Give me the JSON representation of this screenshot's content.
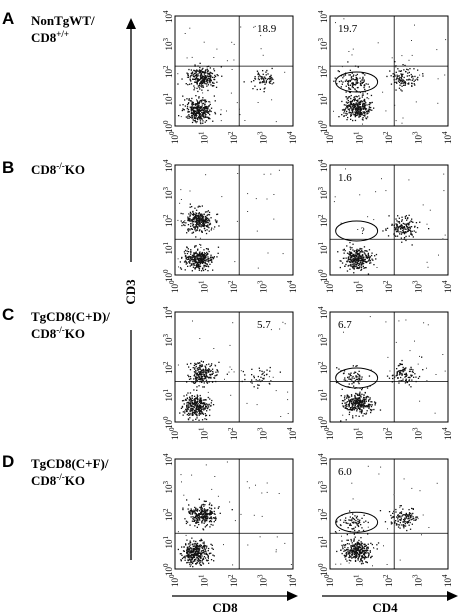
{
  "chart_data": {
    "type": "scatter",
    "xlabel_left": "CD8",
    "xlabel_right": "CD4",
    "ylabel": "CD3",
    "axis_scale": "log",
    "xlim": [
      1,
      10000
    ],
    "ylim": [
      1,
      10000
    ],
    "tick_labels": [
      "10^0",
      "10^1",
      "10^2",
      "10^3",
      "10^4"
    ],
    "panels": [
      {
        "letter": "A",
        "label_lines": [
          "NonTgWT/",
          "CD8+/+"
        ],
        "left_value": "18.9",
        "right_value": "19.7",
        "left_gate": [
          150,
          150
        ],
        "right_gate": [
          150,
          150
        ],
        "left_clusters": [
          {
            "x": 8,
            "y": 60,
            "n": 260
          },
          {
            "x": 6,
            "y": 4,
            "n": 320
          },
          {
            "x": 1000,
            "y": 50,
            "n": 70
          }
        ],
        "right_clusters": [
          {
            "x": 8,
            "y": 5,
            "n": 300
          },
          {
            "x": 6,
            "y": 40,
            "n": 120
          },
          {
            "x": 300,
            "y": 60,
            "n": 110
          }
        ],
        "right_ellipse": {
          "cx": 8,
          "cy": 40
        }
      },
      {
        "letter": "B",
        "label_lines": [
          "CD8-/-KO"
        ],
        "left_value": "",
        "right_value": "1.6",
        "left_gate": [
          150,
          20
        ],
        "right_gate": [
          150,
          20
        ],
        "left_clusters": [
          {
            "x": 6,
            "y": 100,
            "n": 280
          },
          {
            "x": 6,
            "y": 4,
            "n": 300
          }
        ],
        "right_clusters": [
          {
            "x": 8,
            "y": 4,
            "n": 280
          },
          {
            "x": 300,
            "y": 60,
            "n": 140
          }
        ],
        "right_ellipse": {
          "cx": 8,
          "cy": 40
        },
        "right_ellipse_mark": "?"
      },
      {
        "letter": "C",
        "label_lines": [
          "TgCD8(C+D)/",
          "CD8-/-KO"
        ],
        "left_value": "5.7",
        "right_value": "6.7",
        "left_gate": [
          150,
          30
        ],
        "right_gate": [
          150,
          30
        ],
        "left_clusters": [
          {
            "x": 8,
            "y": 60,
            "n": 200
          },
          {
            "x": 5,
            "y": 4,
            "n": 300
          },
          {
            "x": 800,
            "y": 40,
            "n": 40
          }
        ],
        "right_clusters": [
          {
            "x": 8,
            "y": 5,
            "n": 280
          },
          {
            "x": 6,
            "y": 40,
            "n": 70
          },
          {
            "x": 300,
            "y": 60,
            "n": 100
          }
        ],
        "right_ellipse": {
          "cx": 8,
          "cy": 40
        }
      },
      {
        "letter": "D",
        "label_lines": [
          "TgCD8(C+F)/",
          "CD8-/-KO"
        ],
        "left_value": "",
        "right_value": "6.0",
        "left_gate": [
          150,
          20
        ],
        "right_gate": [
          150,
          20
        ],
        "left_clusters": [
          {
            "x": 8,
            "y": 100,
            "n": 260
          },
          {
            "x": 5,
            "y": 4,
            "n": 320
          }
        ],
        "right_clusters": [
          {
            "x": 8,
            "y": 5,
            "n": 300
          },
          {
            "x": 6,
            "y": 50,
            "n": 70
          },
          {
            "x": 300,
            "y": 70,
            "n": 120
          }
        ],
        "right_ellipse": {
          "cx": 8,
          "cy": 50
        }
      }
    ]
  }
}
